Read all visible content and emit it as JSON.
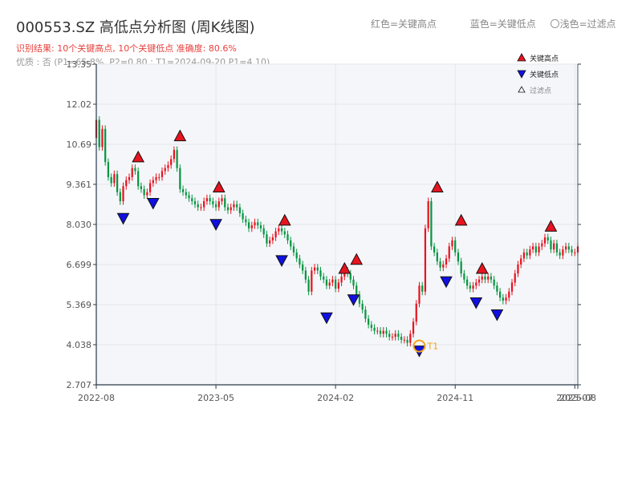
{
  "title": "000553.SZ 高低点分析图 (周K线图)",
  "summary": "识别结果: 10个关键高点, 10个关键低点  准确度: 80.6%",
  "quality": "优质 : 否 (P1=65.8%, P2=0.80 ; T1=2024-09-20 P1=4.10)",
  "top_legend": {
    "high": "红色=关键高点",
    "low": "蓝色=关键低点",
    "filtered": "〇浅色=过滤点"
  },
  "colors": {
    "up": "#e8131f",
    "down": "#079641",
    "high_marker": "#e8131f",
    "low_marker": "#1010e0",
    "t1_ring": "#f4a21b",
    "plot_bg": "#f4f6f9",
    "grid": "#e3e6eb",
    "axis": "#2b3a4a"
  },
  "chart_data": {
    "type": "candlestick",
    "period": "weekly",
    "y_ticks": [
      "2.707",
      "4.038",
      "5.369",
      "6.699",
      "8.030",
      "9.361",
      "10.69",
      "12.02",
      "13.35"
    ],
    "ylim": [
      2.707,
      13.35
    ],
    "x_ticks": [
      "2022-08",
      "2023-05",
      "2024-02",
      "2024-11",
      "2025-07",
      "2025-08"
    ],
    "x_tick_values": [
      0,
      40,
      80,
      120,
      160,
      161
    ],
    "xlim": [
      0,
      161
    ],
    "legend": [
      {
        "label": "关键高点",
        "marker": "triangle-up",
        "color": "#e8131f"
      },
      {
        "label": "关键低点",
        "marker": "triangle-down",
        "color": "#1010e0"
      },
      {
        "label": "过滤点",
        "marker": "triangle-up-small",
        "color": "#ffffff"
      }
    ],
    "close": [
      11.5,
      10.6,
      11.2,
      10.1,
      9.6,
      9.4,
      9.7,
      9.1,
      8.8,
      9.3,
      9.5,
      9.6,
      9.9,
      9.8,
      9.3,
      9.2,
      9.0,
      9.1,
      9.4,
      9.5,
      9.6,
      9.6,
      9.8,
      9.9,
      10.0,
      10.2,
      10.5,
      9.9,
      9.2,
      9.1,
      9.0,
      8.9,
      8.8,
      8.7,
      8.6,
      8.6,
      8.8,
      8.9,
      8.8,
      8.7,
      8.6,
      8.8,
      8.9,
      8.6,
      8.5,
      8.6,
      8.7,
      8.6,
      8.4,
      8.2,
      8.1,
      7.9,
      8.0,
      8.1,
      8.0,
      7.9,
      7.7,
      7.4,
      7.5,
      7.6,
      7.8,
      7.9,
      7.8,
      7.7,
      7.5,
      7.3,
      7.1,
      6.9,
      6.7,
      6.5,
      6.2,
      5.8,
      6.5,
      6.6,
      6.5,
      6.3,
      6.2,
      6.0,
      6.1,
      6.2,
      5.9,
      6.1,
      6.3,
      6.5,
      6.4,
      6.2,
      6.0,
      5.7,
      5.4,
      5.2,
      4.9,
      4.7,
      4.6,
      4.5,
      4.5,
      4.4,
      4.5,
      4.4,
      4.3,
      4.3,
      4.4,
      4.3,
      4.2,
      4.2,
      4.1,
      4.4,
      4.8,
      5.4,
      6.0,
      5.8,
      7.9,
      8.8,
      7.3,
      7.1,
      6.8,
      6.6,
      6.7,
      6.9,
      7.3,
      7.5,
      7.1,
      6.8,
      6.4,
      6.2,
      6.0,
      5.9,
      6.0,
      6.1,
      6.2,
      6.3,
      6.2,
      6.3,
      6.2,
      6.0,
      5.8,
      5.6,
      5.5,
      5.6,
      5.8,
      6.1,
      6.4,
      6.7,
      6.9,
      7.1,
      7.0,
      7.2,
      7.3,
      7.1,
      7.3,
      7.4,
      7.6,
      7.5,
      7.2,
      7.4,
      7.1,
      7.0,
      7.2,
      7.3,
      7.2,
      7.1,
      7.1,
      7.3
    ],
    "key_highs": [
      {
        "index": 14,
        "value": 10.0
      },
      {
        "index": 28,
        "value": 10.7
      },
      {
        "index": 41,
        "value": 9.0
      },
      {
        "index": 63,
        "value": 7.9
      },
      {
        "index": 83,
        "value": 6.3
      },
      {
        "index": 87,
        "value": 6.6
      },
      {
        "index": 114,
        "value": 9.0
      },
      {
        "index": 122,
        "value": 7.9
      },
      {
        "index": 129,
        "value": 6.3
      },
      {
        "index": 152,
        "value": 7.7
      }
    ],
    "key_lows": [
      {
        "index": 9,
        "value": 8.5
      },
      {
        "index": 19,
        "value": 9.0
      },
      {
        "index": 40,
        "value": 8.3
      },
      {
        "index": 62,
        "value": 7.1
      },
      {
        "index": 77,
        "value": 5.2
      },
      {
        "index": 86,
        "value": 5.8
      },
      {
        "index": 108,
        "value": 4.1
      },
      {
        "index": 117,
        "value": 6.4
      },
      {
        "index": 127,
        "value": 5.7
      },
      {
        "index": 134,
        "value": 5.3
      }
    ],
    "t1": {
      "label": "T1",
      "index": 108,
      "value": 4.1
    }
  }
}
